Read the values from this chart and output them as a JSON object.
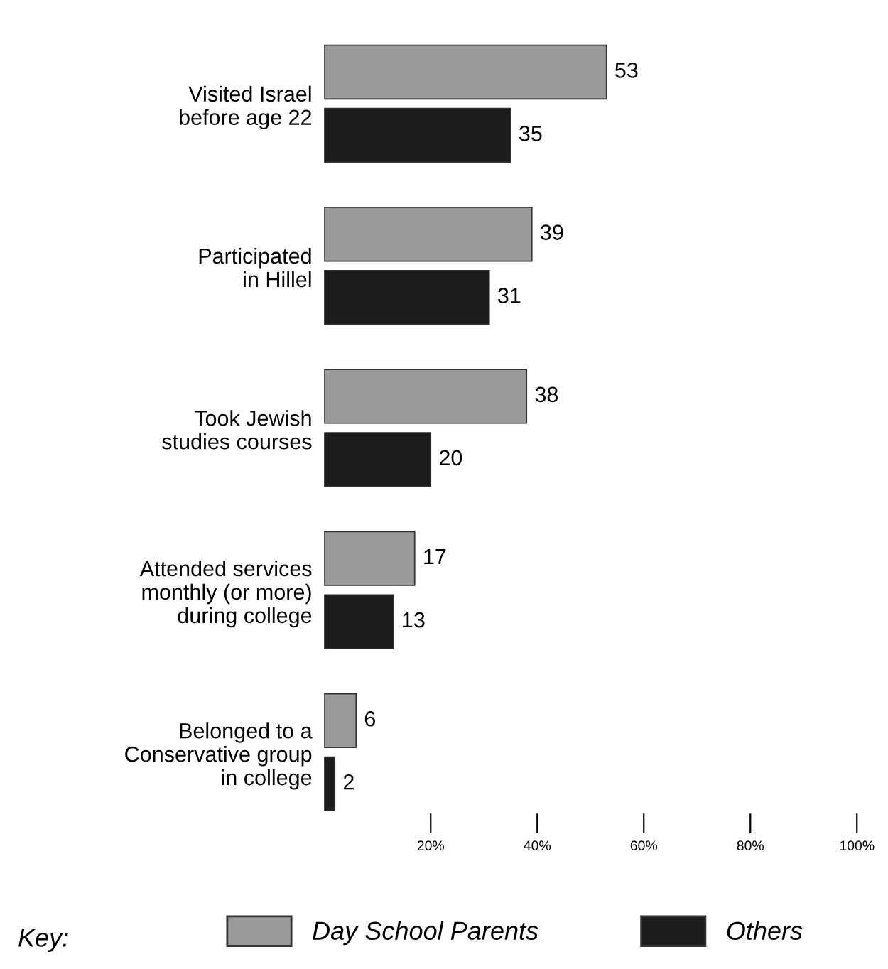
{
  "chart_data": {
    "type": "bar",
    "orientation": "horizontal",
    "categories": [
      "Visited Israel\nbefore age 22",
      "Participated\nin Hillel",
      "Took Jewish\nstudies courses",
      "Attended services\nmonthly (or more)\nduring college",
      "Belonged to a\nConservative group\nin college"
    ],
    "series": [
      {
        "name": "Day School Parents",
        "color": "#9a9a9a",
        "values": [
          53,
          39,
          38,
          17,
          6
        ]
      },
      {
        "name": "Others",
        "color": "#1c1c1c",
        "values": [
          35,
          31,
          20,
          13,
          2
        ]
      }
    ],
    "xlim": [
      0,
      100
    ],
    "xticks": [
      {
        "value": 20,
        "label": "20%"
      },
      {
        "value": 40,
        "label": "40%"
      },
      {
        "value": 60,
        "label": "60%"
      },
      {
        "value": 80,
        "label": "80%"
      },
      {
        "value": 100,
        "label": "100%"
      }
    ],
    "data_labels": true,
    "legend": "bottom",
    "legend_title": "Key:",
    "grid": false
  }
}
